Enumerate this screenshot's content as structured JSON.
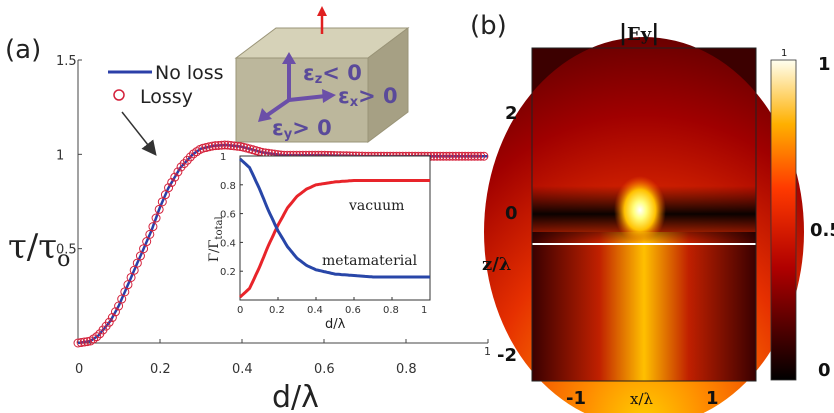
{
  "panels": {
    "a": "(a)",
    "b": "(b)"
  },
  "main_chart": {
    "ylabel": "τ/τ",
    "ylabel_sub": "o",
    "xlabel": "d/λ",
    "xticks": [
      "0",
      "0.2",
      "0.4",
      "0.6",
      "0.8",
      "1"
    ],
    "yticks": [
      "0.5",
      "1",
      "1.5"
    ],
    "legend": {
      "no_loss": "No loss",
      "lossy": "Lossy"
    }
  },
  "inset_chart": {
    "ylabel": "Γ/Γ",
    "ylabel_sub": "total",
    "xlabel": "d/λ",
    "xticks": [
      "0",
      "0.2",
      "0.4",
      "0.6",
      "0.8",
      "1"
    ],
    "yticks": [
      "0.2",
      "0.4",
      "0.6",
      "0.8",
      "1"
    ],
    "vacuum_label": "vacuum",
    "metamaterial_label": "metamaterial"
  },
  "cube": {
    "ez": "ε",
    "ez_sub": "z",
    "ez_rel": "< 0",
    "ex": "ε",
    "ex_sub": "x",
    "ex_rel": "> 0",
    "ey": "ε",
    "ey_sub": "y",
    "ey_rel": "> 0"
  },
  "heatmap": {
    "title": "Ey",
    "xlabel": "x/λ",
    "ylabel": "z/λ",
    "xticks": [
      "-1",
      "1"
    ],
    "yticks": [
      "2",
      "0",
      "-2"
    ],
    "colorbar_ticks": [
      "1",
      "0.5",
      "0"
    ],
    "colorbar_top_small": "1"
  },
  "colors": {
    "no_loss": "#2b3fa8",
    "lossy": "#d4213b",
    "vacuum": "#e8242a",
    "metamaterial": "#2846a8",
    "cube": "#bcb79c"
  },
  "chart_data": [
    {
      "type": "line",
      "title": "",
      "xlabel": "d/λ",
      "ylabel": "τ/τo",
      "xlim": [
        0,
        1
      ],
      "ylim": [
        0,
        1.5
      ],
      "series": [
        {
          "name": "No loss",
          "x": [
            0,
            0.03,
            0.05,
            0.08,
            0.1,
            0.12,
            0.15,
            0.18,
            0.2,
            0.22,
            0.25,
            0.28,
            0.3,
            0.33,
            0.36,
            0.4,
            0.45,
            0.5,
            0.55,
            0.6,
            0.7,
            0.8,
            0.9,
            1.0
          ],
          "y": [
            0,
            0.01,
            0.04,
            0.12,
            0.2,
            0.3,
            0.45,
            0.6,
            0.72,
            0.82,
            0.93,
            1.0,
            1.03,
            1.045,
            1.05,
            1.04,
            1.01,
            0.995,
            0.995,
            0.995,
            0.99,
            0.99,
            0.99,
            0.99
          ]
        },
        {
          "name": "Lossy",
          "x": [
            0,
            0.03,
            0.05,
            0.08,
            0.1,
            0.12,
            0.15,
            0.18,
            0.2,
            0.22,
            0.25,
            0.28,
            0.3,
            0.33,
            0.36,
            0.4,
            0.45,
            0.5,
            0.55,
            0.6,
            0.7,
            0.8,
            0.9,
            1.0
          ],
          "y": [
            0,
            0.01,
            0.04,
            0.12,
            0.2,
            0.3,
            0.45,
            0.6,
            0.72,
            0.82,
            0.93,
            1.0,
            1.03,
            1.045,
            1.05,
            1.04,
            1.01,
            0.995,
            0.995,
            0.995,
            0.99,
            0.99,
            0.99,
            0.99
          ]
        }
      ]
    },
    {
      "type": "line",
      "title": "",
      "xlabel": "d/λ",
      "ylabel": "Γ/Γtotal",
      "xlim": [
        0,
        1
      ],
      "ylim": [
        0,
        1
      ],
      "series": [
        {
          "name": "vacuum",
          "x": [
            0,
            0.05,
            0.1,
            0.15,
            0.2,
            0.25,
            0.3,
            0.35,
            0.4,
            0.5,
            0.6,
            0.7,
            0.8,
            0.9,
            1.0
          ],
          "y": [
            0.02,
            0.08,
            0.22,
            0.38,
            0.52,
            0.64,
            0.72,
            0.77,
            0.8,
            0.82,
            0.83,
            0.83,
            0.83,
            0.83,
            0.83
          ]
        },
        {
          "name": "metamaterial",
          "x": [
            0,
            0.05,
            0.1,
            0.15,
            0.2,
            0.25,
            0.3,
            0.35,
            0.4,
            0.5,
            0.6,
            0.7,
            0.8,
            0.9,
            1.0
          ],
          "y": [
            0.98,
            0.92,
            0.78,
            0.62,
            0.48,
            0.37,
            0.29,
            0.24,
            0.21,
            0.18,
            0.17,
            0.16,
            0.16,
            0.16,
            0.16
          ]
        }
      ]
    },
    {
      "type": "heatmap",
      "title": "|Ey|",
      "xlabel": "x/λ",
      "ylabel": "z/λ",
      "xlim": [
        -1.5,
        1.5
      ],
      "ylim": [
        -3,
        3.5
      ],
      "colorbar_range": [
        0,
        1
      ]
    }
  ]
}
